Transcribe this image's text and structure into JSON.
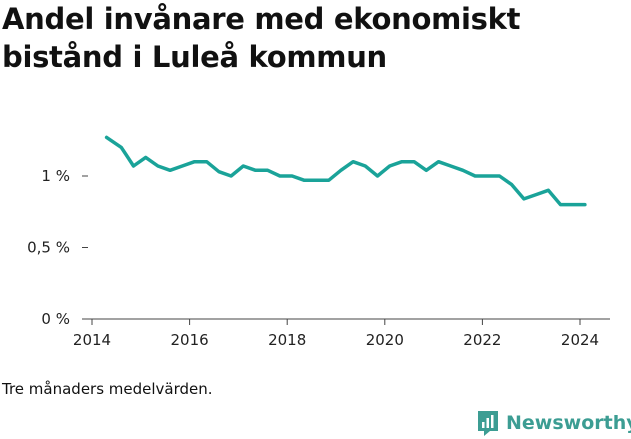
{
  "title": "Andel invånare med ekonomiskt bistånd i Luleå kommun",
  "note": "Tre månaders medelvärden.",
  "brand": {
    "name": "Newsworthy",
    "icon": "newsworthy-logo-icon",
    "color": "#3c9d93"
  },
  "chart_data": {
    "type": "line",
    "title": "Andel invånare med ekonomiskt bistånd i Luleå kommun",
    "xlabel": "",
    "ylabel": "",
    "xlim": [
      2014,
      2024.5
    ],
    "ylim": [
      0,
      1.0
    ],
    "x_ticks": [
      {
        "value": 2014,
        "label": "2014"
      },
      {
        "value": 2016,
        "label": "2016"
      },
      {
        "value": 2018,
        "label": "2018"
      },
      {
        "value": 2020,
        "label": "2020"
      },
      {
        "value": 2022,
        "label": "2022"
      },
      {
        "value": 2024,
        "label": "2024"
      }
    ],
    "y_ticks": [
      {
        "value": 0,
        "label": "0 %"
      },
      {
        "value": 0.5,
        "label": "0,5 %"
      },
      {
        "value": 1,
        "label": "1 %"
      }
    ],
    "grid": false,
    "series": [
      {
        "color": "#1aa399",
        "x": [
          2014.3,
          2014.6,
          2014.85,
          2015.1,
          2015.35,
          2015.6,
          2015.85,
          2016.1,
          2016.35,
          2016.6,
          2016.85,
          2017.1,
          2017.35,
          2017.6,
          2017.85,
          2018.1,
          2018.35,
          2018.6,
          2018.85,
          2019.1,
          2019.35,
          2019.6,
          2019.85,
          2020.1,
          2020.35,
          2020.6,
          2020.85,
          2021.1,
          2021.35,
          2021.6,
          2021.85,
          2022.1,
          2022.35,
          2022.6,
          2022.85,
          2023.1,
          2023.35,
          2023.6,
          2023.85,
          2024.1
        ],
        "values": [
          1.27,
          1.2,
          1.07,
          1.13,
          1.07,
          1.04,
          1.07,
          1.1,
          1.1,
          1.03,
          1.0,
          1.07,
          1.04,
          1.04,
          1.0,
          1.0,
          0.97,
          0.97,
          0.97,
          1.04,
          1.1,
          1.07,
          1.0,
          1.07,
          1.1,
          1.1,
          1.04,
          1.1,
          1.07,
          1.04,
          1.0,
          1.0,
          1.0,
          0.94,
          0.84,
          0.87,
          0.9,
          0.8,
          0.8,
          0.8
        ]
      }
    ]
  }
}
